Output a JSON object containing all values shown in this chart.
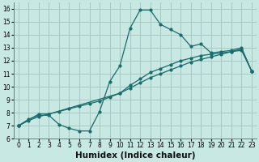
{
  "xlabel": "Humidex (Indice chaleur)",
  "xlim": [
    -0.5,
    23.5
  ],
  "ylim": [
    6,
    16.5
  ],
  "xticks": [
    0,
    1,
    2,
    3,
    4,
    5,
    6,
    7,
    8,
    9,
    10,
    11,
    12,
    13,
    14,
    15,
    16,
    17,
    18,
    19,
    20,
    21,
    22,
    23
  ],
  "yticks": [
    6,
    7,
    8,
    9,
    10,
    11,
    12,
    13,
    14,
    15,
    16
  ],
  "bg_color": "#c8e8e4",
  "grid_color": "#a8c8c4",
  "line_color": "#1a6b6b",
  "line1_x": [
    0,
    1,
    2,
    3,
    4,
    5,
    6,
    7,
    8,
    9,
    10,
    11,
    12,
    13,
    14,
    15,
    16,
    17,
    18,
    19,
    20,
    21,
    22,
    23
  ],
  "line1_y": [
    7.0,
    7.5,
    7.8,
    7.8,
    7.1,
    6.8,
    6.6,
    6.6,
    8.1,
    10.4,
    11.6,
    14.5,
    15.9,
    15.9,
    14.8,
    14.4,
    14.0,
    13.1,
    13.3,
    12.6,
    12.7,
    12.8,
    13.0,
    11.2
  ],
  "line2_x": [
    0,
    2,
    3,
    10,
    11,
    12,
    13,
    14,
    15,
    16,
    17,
    18,
    19,
    20,
    21,
    22,
    23
  ],
  "line2_y": [
    7.0,
    7.9,
    7.9,
    9.5,
    10.1,
    10.6,
    11.1,
    11.4,
    11.7,
    12.0,
    12.2,
    12.4,
    12.5,
    12.6,
    12.7,
    12.8,
    11.2
  ],
  "line3_x": [
    0,
    1,
    2,
    3,
    4,
    5,
    6,
    7,
    8,
    9,
    10,
    11,
    12,
    13,
    14,
    15,
    16,
    17,
    18,
    19,
    20,
    21,
    22,
    23
  ],
  "line3_y": [
    7.0,
    7.4,
    7.7,
    7.9,
    8.1,
    8.3,
    8.5,
    8.7,
    8.9,
    9.2,
    9.5,
    9.9,
    10.3,
    10.7,
    11.0,
    11.3,
    11.6,
    11.9,
    12.1,
    12.3,
    12.5,
    12.7,
    12.9,
    11.2
  ],
  "tick_fontsize": 5.5,
  "xlabel_fontsize": 7.5
}
